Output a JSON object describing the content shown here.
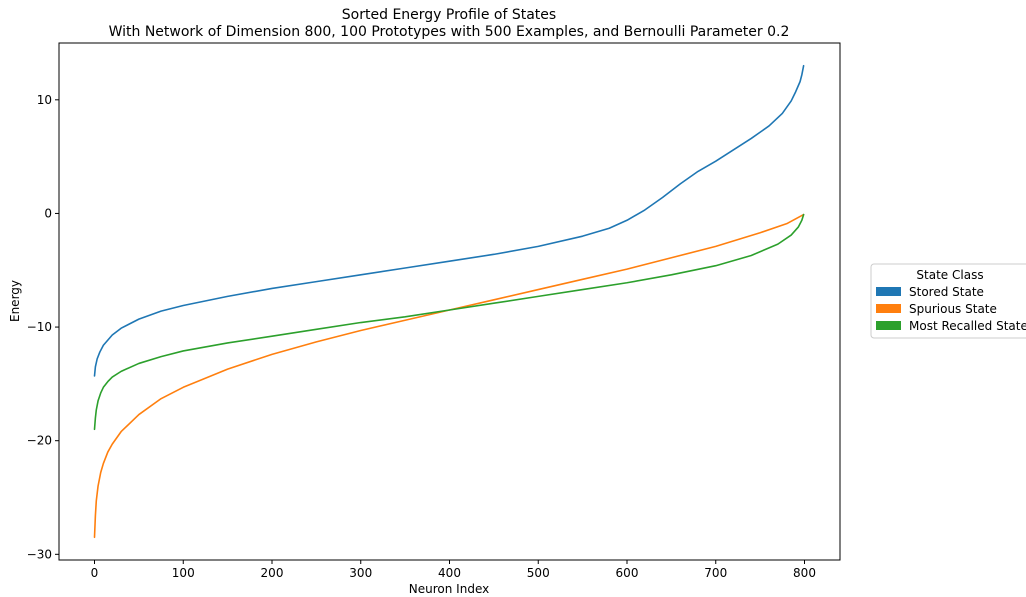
{
  "chart_data": {
    "type": "line",
    "title": "Sorted Energy Profile of States",
    "subtitle": "With Network of Dimension 800, 100 Prototypes with 500 Examples, and Bernoulli Parameter 0.2",
    "xlabel": "Neuron Index",
    "ylabel": "Energy",
    "xlim": [
      -40,
      840
    ],
    "ylim": [
      -30.5,
      15
    ],
    "xticks": [
      0,
      100,
      200,
      300,
      400,
      500,
      600,
      700,
      800
    ],
    "yticks": [
      10,
      0,
      -10,
      -20,
      -30
    ],
    "xtick_labels": [
      "0",
      "100",
      "200",
      "300",
      "400",
      "500",
      "600",
      "700",
      "800"
    ],
    "ytick_labels": [
      "10",
      "0",
      "−10",
      "−20",
      "−30"
    ],
    "grid": false,
    "legend": {
      "title": "State Class",
      "placement": "outside-right"
    },
    "series": [
      {
        "name": "Stored State",
        "color": "#1f77b4",
        "x": [
          0,
          1,
          3,
          6,
          10,
          20,
          30,
          50,
          75,
          100,
          150,
          200,
          250,
          300,
          350,
          400,
          450,
          500,
          550,
          580,
          600,
          620,
          640,
          660,
          680,
          700,
          720,
          740,
          760,
          775,
          785,
          790,
          795,
          797,
          799
        ],
        "y": [
          -14.3,
          -13.5,
          -12.8,
          -12.2,
          -11.6,
          -10.7,
          -10.1,
          -9.3,
          -8.6,
          -8.1,
          -7.3,
          -6.6,
          -6.0,
          -5.4,
          -4.8,
          -4.2,
          -3.6,
          -2.9,
          -2.0,
          -1.3,
          -0.6,
          0.3,
          1.4,
          2.6,
          3.7,
          4.6,
          5.6,
          6.6,
          7.7,
          8.8,
          9.9,
          10.7,
          11.6,
          12.2,
          13.0
        ]
      },
      {
        "name": "Spurious State",
        "color": "#ff7f0e",
        "x": [
          0,
          1,
          2,
          4,
          7,
          10,
          15,
          20,
          30,
          50,
          75,
          100,
          150,
          200,
          250,
          300,
          350,
          400,
          450,
          500,
          550,
          600,
          650,
          700,
          750,
          780,
          799
        ],
        "y": [
          -28.5,
          -26.6,
          -25.3,
          -24.0,
          -22.8,
          -22.0,
          -21.0,
          -20.3,
          -19.2,
          -17.7,
          -16.3,
          -15.3,
          -13.7,
          -12.4,
          -11.3,
          -10.3,
          -9.4,
          -8.5,
          -7.6,
          -6.7,
          -5.8,
          -4.9,
          -3.9,
          -2.9,
          -1.7,
          -0.9,
          -0.1
        ]
      },
      {
        "name": "Most Recalled State",
        "color": "#2ca02c",
        "x": [
          0,
          1,
          2,
          4,
          7,
          10,
          15,
          20,
          30,
          50,
          75,
          100,
          150,
          200,
          250,
          300,
          350,
          400,
          450,
          500,
          550,
          600,
          650,
          700,
          740,
          770,
          785,
          793,
          797,
          799
        ],
        "y": [
          -19.0,
          -18.0,
          -17.3,
          -16.5,
          -15.8,
          -15.3,
          -14.8,
          -14.4,
          -13.9,
          -13.2,
          -12.6,
          -12.1,
          -11.4,
          -10.8,
          -10.2,
          -9.6,
          -9.1,
          -8.5,
          -7.9,
          -7.3,
          -6.7,
          -6.1,
          -5.4,
          -4.6,
          -3.7,
          -2.7,
          -1.9,
          -1.2,
          -0.6,
          -0.1
        ]
      }
    ]
  }
}
